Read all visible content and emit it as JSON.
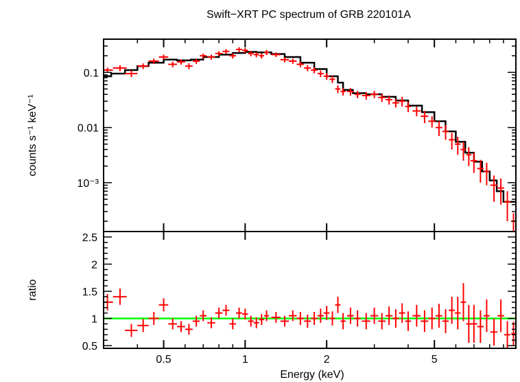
{
  "title": "Swift−XRT PC spectrum of GRB 220101A",
  "colors": {
    "data": "#ff0000",
    "model": "#000000",
    "unity": "#00ff00",
    "frame": "#000000"
  },
  "chart_data": [
    {
      "type": "scatter",
      "panel": "spectrum",
      "title": "Swift−XRT PC spectrum of GRB 220101A",
      "ylabel": "counts s⁻¹ keV⁻¹",
      "xscale": "log",
      "yscale": "log",
      "xlim": [
        0.3,
        10
      ],
      "ylim": [
        0.00013,
        0.4
      ],
      "ytick_labels": [
        "0.1",
        "0.01",
        "10⁻³"
      ],
      "yticks": [
        0.1,
        0.01,
        0.001
      ],
      "series": [
        {
          "kind": "data-with-errors",
          "x": [
            0.31,
            0.345,
            0.38,
            0.42,
            0.46,
            0.5,
            0.54,
            0.58,
            0.62,
            0.66,
            0.7,
            0.75,
            0.8,
            0.85,
            0.9,
            0.95,
            1.0,
            1.05,
            1.1,
            1.15,
            1.2,
            1.3,
            1.4,
            1.5,
            1.6,
            1.7,
            1.8,
            1.9,
            2.0,
            2.1,
            2.2,
            2.3,
            2.45,
            2.6,
            2.8,
            3.0,
            3.2,
            3.4,
            3.6,
            3.8,
            4.0,
            4.3,
            4.6,
            4.9,
            5.2,
            5.5,
            5.8,
            6.1,
            6.4,
            6.7,
            7.0,
            7.4,
            7.8,
            8.3,
            8.8,
            9.3,
            9.8
          ],
          "xerr": [
            0.015,
            0.02,
            0.02,
            0.02,
            0.02,
            0.02,
            0.02,
            0.02,
            0.02,
            0.02,
            0.02,
            0.025,
            0.025,
            0.025,
            0.025,
            0.025,
            0.025,
            0.025,
            0.025,
            0.025,
            0.025,
            0.05,
            0.05,
            0.05,
            0.05,
            0.05,
            0.05,
            0.05,
            0.05,
            0.05,
            0.05,
            0.05,
            0.07,
            0.07,
            0.1,
            0.1,
            0.1,
            0.1,
            0.1,
            0.1,
            0.1,
            0.15,
            0.15,
            0.15,
            0.15,
            0.15,
            0.15,
            0.15,
            0.15,
            0.15,
            0.2,
            0.2,
            0.2,
            0.25,
            0.25,
            0.25,
            0.2
          ],
          "y": [
            0.11,
            0.12,
            0.095,
            0.13,
            0.16,
            0.19,
            0.14,
            0.155,
            0.13,
            0.16,
            0.2,
            0.19,
            0.22,
            0.24,
            0.2,
            0.26,
            0.25,
            0.22,
            0.21,
            0.2,
            0.23,
            0.21,
            0.17,
            0.16,
            0.14,
            0.12,
            0.11,
            0.095,
            0.085,
            0.075,
            0.05,
            0.045,
            0.045,
            0.04,
            0.038,
            0.04,
            0.035,
            0.032,
            0.028,
            0.03,
            0.024,
            0.02,
            0.016,
            0.013,
            0.01,
            0.0085,
            0.006,
            0.005,
            0.004,
            0.0032,
            0.0025,
            0.0018,
            0.0016,
            0.0009,
            0.0008,
            0.00045,
            0.0002
          ],
          "yerr_lo": [
            0.012,
            0.015,
            0.013,
            0.015,
            0.018,
            0.02,
            0.016,
            0.017,
            0.016,
            0.018,
            0.02,
            0.02,
            0.022,
            0.024,
            0.022,
            0.026,
            0.025,
            0.024,
            0.022,
            0.022,
            0.024,
            0.02,
            0.018,
            0.017,
            0.016,
            0.015,
            0.014,
            0.013,
            0.012,
            0.011,
            0.008,
            0.007,
            0.007,
            0.006,
            0.006,
            0.006,
            0.006,
            0.006,
            0.005,
            0.006,
            0.005,
            0.004,
            0.004,
            0.003,
            0.003,
            0.0025,
            0.002,
            0.0018,
            0.0015,
            0.0012,
            0.001,
            0.0008,
            0.0007,
            0.00045,
            0.0004,
            0.00025,
            8e-05
          ],
          "yerr_hi": [
            0.012,
            0.015,
            0.013,
            0.015,
            0.018,
            0.02,
            0.016,
            0.017,
            0.016,
            0.018,
            0.02,
            0.02,
            0.022,
            0.024,
            0.022,
            0.026,
            0.025,
            0.024,
            0.022,
            0.022,
            0.024,
            0.02,
            0.018,
            0.017,
            0.016,
            0.015,
            0.014,
            0.013,
            0.012,
            0.011,
            0.008,
            0.007,
            0.007,
            0.006,
            0.006,
            0.006,
            0.006,
            0.006,
            0.005,
            0.006,
            0.005,
            0.004,
            0.004,
            0.003,
            0.003,
            0.0025,
            0.002,
            0.0018,
            0.0015,
            0.0012,
            0.001,
            0.0008,
            0.0007,
            0.00045,
            0.0004,
            0.00025,
            8e-05
          ]
        },
        {
          "kind": "model-step",
          "x": [
            0.3,
            0.32,
            0.36,
            0.4,
            0.44,
            0.5,
            0.56,
            0.63,
            0.7,
            0.8,
            0.9,
            1.0,
            1.1,
            1.25,
            1.4,
            1.6,
            1.8,
            2.0,
            2.2,
            2.3,
            2.5,
            2.8,
            3.2,
            3.6,
            4.0,
            4.5,
            5.0,
            5.5,
            6.0,
            6.5,
            7.0,
            7.5,
            8.0,
            8.5,
            9.0,
            10.0
          ],
          "y": [
            0.085,
            0.095,
            0.11,
            0.13,
            0.15,
            0.17,
            0.165,
            0.17,
            0.19,
            0.21,
            0.225,
            0.235,
            0.23,
            0.215,
            0.19,
            0.15,
            0.115,
            0.085,
            0.065,
            0.048,
            0.042,
            0.04,
            0.036,
            0.031,
            0.025,
            0.019,
            0.013,
            0.0085,
            0.0055,
            0.0035,
            0.0024,
            0.0016,
            0.0011,
            0.0007,
            0.00045,
            0.00028
          ]
        }
      ]
    },
    {
      "type": "scatter",
      "panel": "ratio",
      "xlabel": "Energy (keV)",
      "ylabel": "ratio",
      "xscale": "log",
      "xlim": [
        0.3,
        10
      ],
      "ylim": [
        0.45,
        2.6
      ],
      "xticks": [
        0.5,
        1,
        2,
        5
      ],
      "xtick_labels": [
        "0.5",
        "1",
        "2",
        "5"
      ],
      "yticks": [
        0.5,
        1,
        1.5,
        2,
        2.5
      ],
      "ytick_labels": [
        "0.5",
        "1",
        "1.5",
        "2",
        "2.5"
      ],
      "reference_line": 1,
      "series": [
        {
          "kind": "data-with-errors",
          "x": [
            0.31,
            0.345,
            0.38,
            0.42,
            0.46,
            0.5,
            0.54,
            0.58,
            0.62,
            0.66,
            0.7,
            0.75,
            0.8,
            0.85,
            0.9,
            0.95,
            1.0,
            1.05,
            1.1,
            1.15,
            1.2,
            1.3,
            1.4,
            1.5,
            1.6,
            1.7,
            1.8,
            1.9,
            2.0,
            2.1,
            2.2,
            2.3,
            2.45,
            2.6,
            2.8,
            3.0,
            3.2,
            3.4,
            3.6,
            3.8,
            4.0,
            4.3,
            4.6,
            4.9,
            5.2,
            5.5,
            5.8,
            6.1,
            6.4,
            6.7,
            7.0,
            7.4,
            7.8,
            8.3,
            8.8,
            9.3,
            9.8
          ],
          "xerr": [
            0.015,
            0.02,
            0.02,
            0.02,
            0.02,
            0.02,
            0.02,
            0.02,
            0.02,
            0.02,
            0.02,
            0.025,
            0.025,
            0.025,
            0.025,
            0.025,
            0.025,
            0.025,
            0.025,
            0.025,
            0.025,
            0.05,
            0.05,
            0.05,
            0.05,
            0.05,
            0.05,
            0.05,
            0.05,
            0.05,
            0.05,
            0.05,
            0.07,
            0.07,
            0.1,
            0.1,
            0.1,
            0.1,
            0.1,
            0.1,
            0.1,
            0.15,
            0.15,
            0.15,
            0.15,
            0.15,
            0.15,
            0.15,
            0.15,
            0.15,
            0.2,
            0.2,
            0.2,
            0.25,
            0.25,
            0.25,
            0.2
          ],
          "y": [
            1.3,
            1.4,
            0.78,
            0.87,
            1.0,
            1.25,
            0.9,
            0.85,
            0.8,
            0.95,
            1.05,
            0.92,
            1.1,
            1.15,
            0.9,
            1.1,
            1.08,
            0.95,
            0.92,
            0.98,
            1.05,
            1.02,
            0.95,
            1.05,
            1.0,
            0.95,
            1.0,
            1.05,
            1.1,
            1.0,
            1.25,
            0.95,
            1.05,
            1.0,
            0.95,
            1.05,
            0.95,
            1.05,
            1.0,
            1.1,
            0.95,
            1.05,
            0.95,
            1.0,
            1.05,
            0.95,
            1.15,
            1.1,
            1.3,
            0.9,
            0.9,
            0.85,
            1.05,
            0.75,
            1.05,
            0.7,
            0.72
          ],
          "yerr_lo": [
            0.15,
            0.15,
            0.12,
            0.12,
            0.12,
            0.12,
            0.1,
            0.1,
            0.1,
            0.1,
            0.1,
            0.1,
            0.1,
            0.1,
            0.1,
            0.1,
            0.1,
            0.1,
            0.1,
            0.1,
            0.1,
            0.1,
            0.1,
            0.1,
            0.12,
            0.12,
            0.12,
            0.13,
            0.13,
            0.13,
            0.15,
            0.15,
            0.15,
            0.15,
            0.15,
            0.15,
            0.15,
            0.17,
            0.17,
            0.18,
            0.18,
            0.2,
            0.2,
            0.2,
            0.22,
            0.22,
            0.25,
            0.3,
            0.35,
            0.35,
            0.35,
            0.3,
            0.3,
            0.25,
            0.3,
            0.25,
            0.22
          ],
          "yerr_hi": [
            0.15,
            0.15,
            0.12,
            0.12,
            0.12,
            0.12,
            0.1,
            0.1,
            0.1,
            0.1,
            0.1,
            0.1,
            0.1,
            0.1,
            0.1,
            0.1,
            0.1,
            0.1,
            0.1,
            0.1,
            0.1,
            0.1,
            0.1,
            0.1,
            0.12,
            0.12,
            0.12,
            0.13,
            0.13,
            0.13,
            0.15,
            0.15,
            0.15,
            0.15,
            0.15,
            0.15,
            0.15,
            0.17,
            0.17,
            0.18,
            0.18,
            0.2,
            0.2,
            0.2,
            0.22,
            0.22,
            0.25,
            0.3,
            0.35,
            0.35,
            0.35,
            0.3,
            0.3,
            0.25,
            0.3,
            0.25,
            0.22
          ]
        }
      ]
    }
  ]
}
